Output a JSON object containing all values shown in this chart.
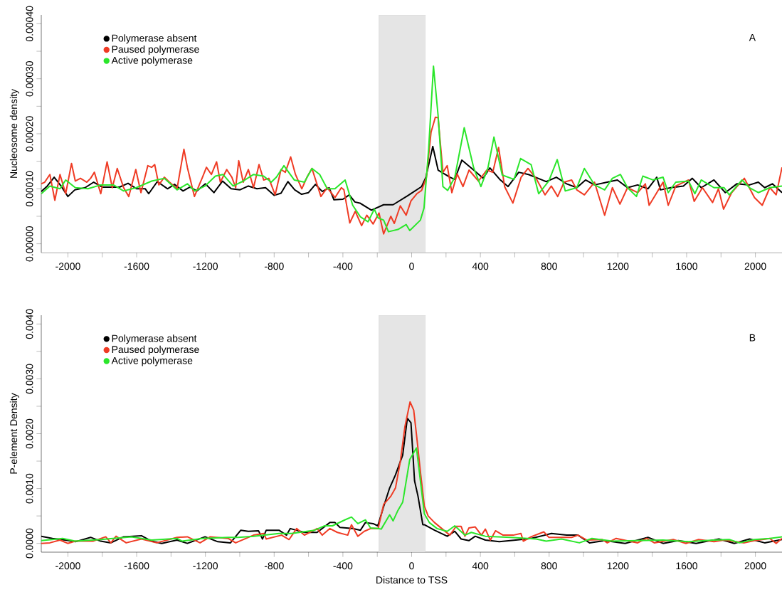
{
  "chart_data": [
    {
      "type": "line",
      "ylabel": "Nucleosome density",
      "annotations": [
        "A"
      ],
      "legend": "top left",
      "xlim": [
        -2155,
        2155
      ],
      "ylim": [
        -1.6e-05,
        0.000416
      ],
      "xticks": [
        -2000,
        {
          "value": -1800,
          "label": null
        },
        -1600,
        {
          "value": -1400,
          "label": null
        },
        -1200,
        {
          "value": -1000,
          "label": null
        },
        -800,
        {
          "value": -600,
          "label": null
        },
        -400,
        {
          "value": -200,
          "label": null
        },
        0,
        {
          "value": 200,
          "label": null
        },
        400,
        {
          "value": 600,
          "label": null
        },
        800,
        {
          "value": 1000,
          "label": null
        },
        1200,
        {
          "value": 1400,
          "label": null
        },
        1600,
        {
          "value": 1800,
          "label": null
        },
        2000
      ],
      "yticks": [
        {
          "value": 0,
          "label": "0.00000"
        },
        {
          "value": 5e-05,
          "label": null
        },
        {
          "value": 0.0001,
          "label": "0.00010"
        },
        {
          "value": 0.00015,
          "label": null
        },
        {
          "value": 0.0002,
          "label": "0.00020"
        },
        {
          "value": 0.00025,
          "label": null
        },
        {
          "value": 0.0003,
          "label": "0.00030"
        },
        {
          "value": 0.00035,
          "label": null
        },
        {
          "value": 0.0004,
          "label": "0.00040"
        }
      ],
      "bands": [
        {
          "axis": "x",
          "from": -190,
          "to": 80,
          "color": "#e5e5e5"
        }
      ],
      "series": [
        {
          "name": "Polymerase absent",
          "color": "#000000",
          "x": [
            -2155,
            -2120,
            -2080,
            -2040,
            -2000,
            -1960,
            -1900,
            -1850,
            -1800,
            -1700,
            -1650,
            -1600,
            -1550,
            -1530,
            -1480,
            -1420,
            -1380,
            -1330,
            -1290,
            -1250,
            -1200,
            -1150,
            -1100,
            -1050,
            -1000,
            -950,
            -900,
            -850,
            -800,
            -760,
            -720,
            -680,
            -640,
            -600,
            -560,
            -520,
            -480,
            -452,
            -400,
            -363,
            -330,
            -301,
            -234,
            -163,
            -108,
            -25,
            58,
            83,
            123,
            154,
            223,
            251,
            292,
            361,
            416,
            455,
            513,
            561,
            623,
            680,
            783,
            842,
            902,
            961,
            1012,
            1064,
            1138,
            1197,
            1256,
            1315,
            1375,
            1426,
            1448,
            1508,
            1581,
            1633,
            1685,
            1759,
            1825,
            1892,
            1966,
            2017,
            2054,
            2099,
            2155
          ],
          "values": [
            9.5e-05,
            0.000105,
            0.000121,
            0.000105,
            8.6e-05,
            9.8e-05,
            0.000102,
            0.000112,
            0.000103,
            0.000103,
            0.00011,
            0.0001,
            0.0001,
            9.1e-05,
            0.000113,
            0.0001,
            0.000108,
            9.6e-05,
            0.000103,
            9.6e-05,
            0.000109,
            9.3e-05,
            0.000114,
            0.0001,
            9.8e-05,
            0.000105,
            0.0001,
            0.000102,
            8.8e-05,
            9.2e-05,
            0.000113,
            9.8e-05,
            9e-05,
            9.3e-05,
            0.000108,
            9.5e-05,
            0.000102,
            8e-05,
            8.1e-05,
            8.9e-05,
            7.6e-05,
            7.4e-05,
            6.1e-05,
            7.1e-05,
            7.1e-05,
            8.7e-05,
            0.000104,
            0.000121,
            0.000177,
            0.000134,
            0.000121,
            0.000117,
            0.000152,
            0.000134,
            0.000119,
            0.000138,
            0.000117,
            0.000104,
            0.00013,
            0.000126,
            0.000113,
            0.000121,
            0.000109,
            0.000102,
            0.000116,
            0.000107,
            0.000112,
            0.000116,
            0.000102,
            0.000107,
            0.0001,
            0.000121,
            9.8e-05,
            0.000102,
            0.000105,
            0.000119,
            0.000102,
            0.000116,
            9.3e-05,
            0.000109,
            0.000107,
            0.000112,
            0.000102,
            0.000109,
            9.3e-05
          ]
        },
        {
          "name": "Paused polymerase",
          "color": "#ef3b24",
          "x": [
            -2155,
            -2135,
            -2105,
            -2076,
            -2046,
            -2013,
            -1979,
            -1957,
            -1927,
            -1890,
            -1868,
            -1846,
            -1809,
            -1772,
            -1742,
            -1713,
            -1676,
            -1646,
            -1605,
            -1575,
            -1535,
            -1513,
            -1495,
            -1471,
            -1439,
            -1409,
            -1365,
            -1325,
            -1305,
            -1264,
            -1217,
            -1194,
            -1165,
            -1135,
            -1113,
            -1076,
            -1046,
            -1024,
            -1006,
            -980,
            -950,
            -920,
            -888,
            -861,
            -831,
            -794,
            -760,
            -735,
            -704,
            -676,
            -639,
            -609,
            -580,
            -528,
            -491,
            -446,
            -409,
            -394,
            -360,
            -328,
            -291,
            -261,
            -224,
            -190,
            -163,
            -121,
            -101,
            -66,
            -32,
            -4,
            30,
            58,
            86,
            113,
            138,
            154,
            182,
            207,
            234,
            265,
            299,
            334,
            389,
            437,
            472,
            506,
            541,
            589,
            637,
            677,
            724,
            776,
            813,
            850,
            887,
            931,
            961,
            1005,
            1064,
            1123,
            1168,
            1212,
            1256,
            1315,
            1360,
            1382,
            1419,
            1463,
            1493,
            1537,
            1611,
            1644,
            1692,
            1751,
            1785,
            1815,
            1862,
            1896,
            1936,
            1995,
            2040,
            2084,
            2121,
            2155
          ],
          "values": [
            0.000109,
            0.000112,
            0.000126,
            7.9e-05,
            0.000126,
            9.1e-05,
            0.000146,
            0.000114,
            0.000119,
            0.000112,
            0.000119,
            0.00013,
            9.1e-05,
            0.000149,
            0.000102,
            0.000137,
            0.000102,
            8.6e-05,
            0.000135,
            9.3e-05,
            0.000142,
            0.000139,
            0.000144,
            0.000107,
            0.000121,
            0.000112,
            0.0001,
            0.000172,
            0.000139,
            8.6e-05,
            0.000121,
            0.000139,
            0.000126,
            0.000149,
            0.000112,
            0.000135,
            0.000121,
            0.000102,
            0.000151,
            0.000112,
            0.000135,
            0.000102,
            0.000144,
            0.000116,
            0.000119,
            8.9e-05,
            0.000135,
            0.00013,
            0.000158,
            0.000126,
            0.0001,
            0.000121,
            0.000137,
            8.6e-05,
            0.000102,
            8.4e-05,
            0.000102,
            9.8e-05,
            3.8e-05,
            5.9e-05,
            3.3e-05,
            5.2e-05,
            3.6e-05,
            5.6e-05,
            1.8e-05,
            5e-05,
            3.7e-05,
            6.9e-05,
            5.2e-05,
            7.8e-05,
            9.1e-05,
            9.7e-05,
            0.000121,
            0.000203,
            0.00023,
            0.000229,
            0.00013,
            0.000142,
            9.3e-05,
            0.000127,
            0.000104,
            0.000134,
            0.000114,
            0.000134,
            0.00013,
            0.000175,
            0.000104,
            7.4e-05,
            0.000121,
            0.000137,
            0.000119,
            8.9e-05,
            0.000105,
            8.6e-05,
            0.000112,
            0.000116,
            9.8e-05,
            8.9e-05,
            0.000112,
            5.2e-05,
            0.000102,
            7.2e-05,
            0.000102,
            9.3e-05,
            0.000109,
            7e-05,
            8.9e-05,
            0.000112,
            7e-05,
            0.000105,
            0.000116,
            7.7e-05,
            0.000102,
            7.5e-05,
            0.0001,
            6.3e-05,
            9.3e-05,
            0.000105,
            0.000119,
            8.4e-05,
            7e-05,
            0.000102,
            8.9e-05,
            0.000139
          ]
        },
        {
          "name": "Active polymerase",
          "color": "#2be62b",
          "x": [
            -2155,
            -2105,
            -2046,
            -2013,
            -1957,
            -1883,
            -1809,
            -1735,
            -1676,
            -1602,
            -1513,
            -1439,
            -1365,
            -1305,
            -1261,
            -1202,
            -1142,
            -1098,
            -1039,
            -980,
            -920,
            -861,
            -817,
            -787,
            -743,
            -683,
            -624,
            -580,
            -535,
            -491,
            -446,
            -387,
            -343,
            -298,
            -254,
            -217,
            -195,
            -163,
            -135,
            -80,
            -32,
            -11,
            51,
            72,
            99,
            127,
            154,
            182,
            210,
            251,
            306,
            361,
            403,
            444,
            479,
            527,
            596,
            634,
            695,
            739,
            798,
            847,
            894,
            961,
            1005,
            1064,
            1123,
            1168,
            1215,
            1256,
            1308,
            1345,
            1404,
            1463,
            1493,
            1537,
            1611,
            1648,
            1685,
            1759,
            1818,
            1848,
            1922,
            1966,
            2017,
            2084,
            2155
          ],
          "values": [
            9.1e-05,
            0.000105,
            0.0001,
            0.000116,
            0.000102,
            0.0001,
            0.000107,
            0.000107,
            9.6e-05,
            0.000102,
            0.000114,
            0.000119,
            9.8e-05,
            0.000109,
            9.6e-05,
            0.000105,
            0.000123,
            0.000126,
            0.000105,
            0.000114,
            0.000126,
            0.000123,
            0.000112,
            0.000121,
            0.000142,
            0.000116,
            0.000112,
            0.000137,
            0.000126,
            0.0001,
            0.0001,
            0.000116,
            7e-05,
            4.9e-05,
            4e-05,
            6.3e-05,
            4.7e-05,
            4.3e-05,
            2.2e-05,
            2.6e-05,
            3.5e-05,
            2.4e-05,
            4.3e-05,
            6.5e-05,
            0.000173,
            0.000323,
            0.000233,
            0.000104,
            9.7e-05,
            0.000121,
            0.000211,
            0.000138,
            0.000104,
            0.000138,
            0.000194,
            0.000125,
            0.000117,
            0.000155,
            0.000144,
            9.1e-05,
            0.000114,
            0.000153,
            9.6e-05,
            0.000102,
            0.000137,
            0.000107,
            9.8e-05,
            0.000119,
            0.000126,
            0.000102,
            8.6e-05,
            0.000123,
            0.000116,
            0.000121,
            9.3e-05,
            0.000112,
            0.000114,
            9.1e-05,
            0.000116,
            0.000102,
            0.000102,
            8.9e-05,
            0.000116,
            0.000102,
            9.3e-05,
            0.000102,
            0.000105
          ]
        }
      ]
    },
    {
      "type": "line",
      "xlabel": "Distance to TSS",
      "ylabel": "P-element Density",
      "annotations": [
        "B"
      ],
      "legend": "top left",
      "xlim": [
        -2155,
        2155
      ],
      "ylim": [
        -0.00016,
        0.00416
      ],
      "xticks": [
        -2000,
        {
          "value": -1800,
          "label": null
        },
        -1600,
        {
          "value": -1400,
          "label": null
        },
        -1200,
        {
          "value": -1000,
          "label": null
        },
        -800,
        {
          "value": -600,
          "label": null
        },
        -400,
        {
          "value": -200,
          "label": null
        },
        0,
        {
          "value": 200,
          "label": null
        },
        400,
        {
          "value": 600,
          "label": null
        },
        800,
        {
          "value": 1000,
          "label": null
        },
        1200,
        {
          "value": 1400,
          "label": null
        },
        1600,
        {
          "value": 1800,
          "label": null
        },
        2000
      ],
      "yticks": [
        {
          "value": 0,
          "label": "0.0000"
        },
        {
          "value": 0.0005,
          "label": null
        },
        {
          "value": 0.001,
          "label": "0.0010"
        },
        {
          "value": 0.0015,
          "label": null
        },
        {
          "value": 0.002,
          "label": "0.0020"
        },
        {
          "value": 0.0025,
          "label": null
        },
        {
          "value": 0.003,
          "label": "0.0030"
        },
        {
          "value": 0.0035,
          "label": null
        },
        {
          "value": 0.004,
          "label": "0.0040"
        }
      ],
      "bands": [
        {
          "axis": "x",
          "from": -190,
          "to": 80,
          "color": "#e5e5e5"
        }
      ],
      "series": [
        {
          "name": "Polymerase absent",
          "color": "#000000",
          "x": [
            -2155,
            -2090,
            -2016,
            -1957,
            -1868,
            -1809,
            -1750,
            -1676,
            -1572,
            -1513,
            -1454,
            -1365,
            -1305,
            -1202,
            -1128,
            -1054,
            -994,
            -950,
            -891,
            -868,
            -846,
            -772,
            -728,
            -706,
            -624,
            -550,
            -476,
            -446,
            -417,
            -343,
            -298,
            -269,
            -224,
            -197,
            -163,
            -128,
            -94,
            -52,
            -25,
            -4,
            17,
            37,
            65,
            74,
            133,
            207,
            251,
            288,
            333,
            370,
            429,
            510,
            606,
            695,
            813,
            902,
            968,
            1035,
            1123,
            1242,
            1375,
            1463,
            1552,
            1655,
            1788,
            1877,
            1966,
            2054,
            2155
          ],
          "values": [
            0.00013,
            9e-05,
            6e-05,
            3e-05,
            0.00011,
            4e-05,
            1e-05,
            0.00012,
            0.00014,
            4e-05,
            0,
            6e-05,
            0,
            0.00012,
            3e-05,
            1e-05,
            0.00024,
            0.00022,
            0.00023,
            8e-05,
            0.00024,
            0.00024,
            0.00015,
            0.00027,
            0.0002,
            0.0002,
            0.00038,
            0.00038,
            0.00029,
            0.00027,
            0.00024,
            0.00038,
            0.00036,
            0.00032,
            0.00067,
            0.00101,
            0.00125,
            0.00161,
            0.00228,
            0.0022,
            0.00114,
            0.00086,
            0.00034,
            0.00034,
            0.00024,
            0.00013,
            0.00022,
            8e-05,
            5e-05,
            0.00013,
            6e-05,
            3e-05,
            6e-05,
            9e-05,
            0.00018,
            0.00015,
            0.00015,
            1e-05,
            5e-05,
            0,
            0.00011,
            0,
            5e-05,
            0,
            8e-05,
            0,
            8e-05,
            1e-05,
            7e-05
          ]
        },
        {
          "name": "Paused polymerase",
          "color": "#ef3b24",
          "x": [
            -2155,
            -2105,
            -2046,
            -2001,
            -1957,
            -1854,
            -1780,
            -1750,
            -1720,
            -1661,
            -1572,
            -1483,
            -1365,
            -1305,
            -1231,
            -1172,
            -1068,
            -1024,
            -920,
            -861,
            -846,
            -757,
            -713,
            -669,
            -624,
            -550,
            -520,
            -476,
            -432,
            -372,
            -350,
            -313,
            -276,
            -239,
            -195,
            -163,
            -121,
            -94,
            -66,
            -39,
            -9,
            12,
            30,
            52,
            74,
            96,
            133,
            222,
            259,
            288,
            310,
            333,
            370,
            406,
            429,
            458,
            488,
            532,
            591,
            636,
            650,
            695,
            769,
            798,
            872,
            931,
            968,
            1020,
            1109,
            1138,
            1190,
            1315,
            1367,
            1412,
            1522,
            1596,
            1670,
            1759,
            1818,
            1936,
            1995,
            2084,
            2121,
            2155
          ],
          "values": [
            0,
            1e-05,
            6e-05,
            0,
            4e-05,
            4e-05,
            0.00012,
            1e-05,
            0.00013,
            1e-05,
            8e-05,
            1e-05,
            0.00011,
            0.00012,
            1e-05,
            0.00012,
            9e-05,
            1e-05,
            0.00015,
            0.00018,
            8e-05,
            0.00015,
            7e-05,
            0.00027,
            0.00015,
            0.00027,
            0.00015,
            0.00027,
            0.0002,
            0.00015,
            0.00034,
            0.00013,
            0.00022,
            0.00027,
            0.00027,
            0.00071,
            0.00086,
            0.00101,
            0.00149,
            0.00213,
            0.00258,
            0.00243,
            0.00193,
            0.00128,
            0.00068,
            0.0005,
            0.00038,
            0.00015,
            0.00031,
            0.00031,
            0.00013,
            0.00028,
            0.0003,
            0.00015,
            0.00026,
            6e-05,
            0.00023,
            0.00015,
            0.00015,
            0.00018,
            4e-05,
            0.00012,
            0.00021,
            0.00011,
            0.00011,
            0.00011,
            0.00015,
            6e-05,
            7e-05,
            1e-05,
            9e-05,
            1e-05,
            9e-05,
            1e-05,
            7e-05,
            0,
            7e-05,
            3e-05,
            6e-05,
            1e-05,
            5e-05,
            9e-05,
            0,
            9e-05
          ]
        },
        {
          "name": "Active polymerase",
          "color": "#2be62b",
          "x": [
            -2155,
            -2031,
            -1957,
            -1809,
            -1631,
            -1513,
            -1365,
            -1335,
            -1217,
            -1068,
            -1009,
            -920,
            -772,
            -698,
            -565,
            -506,
            -461,
            -387,
            -350,
            -313,
            -269,
            -239,
            -195,
            -177,
            -128,
            -108,
            -80,
            -52,
            -11,
            28,
            74,
            103,
            148,
            207,
            251,
            310,
            347,
            429,
            576,
            724,
            783,
            872,
            976,
            1049,
            1168,
            1315,
            1463,
            1611,
            1759,
            1848,
            1907,
            1995,
            2084,
            2155
          ],
          "values": [
            5e-05,
            9e-05,
            4e-05,
            7e-05,
            0.00012,
            6e-05,
            9e-05,
            4e-05,
            9e-05,
            0.00011,
            0.00011,
            0.00013,
            0.00018,
            0.00018,
            0.00024,
            0.00032,
            0.00032,
            0.00043,
            0.00048,
            0.00036,
            0.00043,
            0.00028,
            0.00027,
            0.00026,
            0.00052,
            0.00041,
            0.0006,
            0.00075,
            0.00153,
            0.00174,
            0.00054,
            0.00038,
            0.00027,
            0.00022,
            0.00032,
            0.00015,
            0.0002,
            0.00013,
            0.00011,
            8e-05,
            4e-05,
            8e-05,
            1e-05,
            9e-05,
            4e-05,
            5e-05,
            6e-05,
            3e-05,
            6e-05,
            7e-05,
            1e-05,
            7e-05,
            9e-05,
            0.00012
          ]
        }
      ]
    }
  ]
}
